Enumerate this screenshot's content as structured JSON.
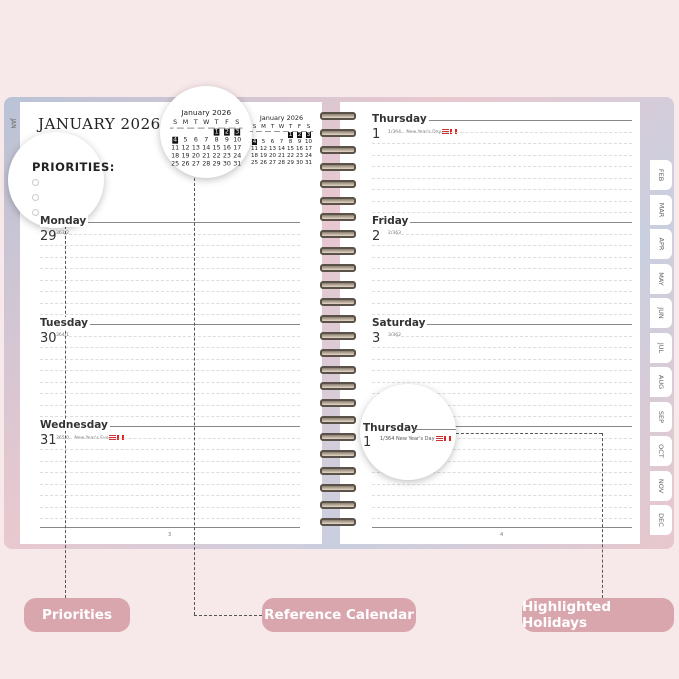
{
  "left_page": {
    "month_title": "JANUARY 2026",
    "priorities_label": "PRIORITIES:",
    "days": [
      {
        "name": "Monday",
        "date": "29",
        "count": "363/2",
        "holiday": ""
      },
      {
        "name": "Tuesday",
        "date": "30",
        "count": "364/1",
        "holiday": ""
      },
      {
        "name": "Wednesday",
        "date": "31",
        "count": "365/0",
        "holiday": "New Year's Eve"
      }
    ],
    "page_number": "3",
    "tab": "JAN"
  },
  "right_page": {
    "days": [
      {
        "name": "Thursday",
        "date": "1",
        "count": "1/364",
        "holiday": "New Year's Day"
      },
      {
        "name": "Friday",
        "date": "2",
        "count": "2/363",
        "holiday": ""
      },
      {
        "name": "Saturday",
        "date": "3",
        "count": "3/362",
        "holiday": ""
      }
    ],
    "page_number": "4",
    "tabs": [
      "FEB",
      "MAR",
      "APR",
      "MAY",
      "JUN",
      "JUL",
      "AUG",
      "SEP",
      "OCT",
      "NOV",
      "DEC"
    ]
  },
  "mini_calendar": {
    "title": "January 2026",
    "weekdays": [
      "S",
      "M",
      "T",
      "W",
      "T",
      "F",
      "S"
    ],
    "weeks": [
      [
        "",
        "",
        "",
        "",
        "1",
        "2",
        "3"
      ],
      [
        "4",
        "5",
        "6",
        "7",
        "8",
        "9",
        "10"
      ],
      [
        "11",
        "12",
        "13",
        "14",
        "15",
        "16",
        "17"
      ],
      [
        "18",
        "19",
        "20",
        "21",
        "22",
        "23",
        "24"
      ],
      [
        "25",
        "26",
        "27",
        "28",
        "29",
        "30",
        "31"
      ]
    ],
    "highlighted": [
      "1",
      "2",
      "3",
      "4"
    ]
  },
  "magnifier_thursday": {
    "name": "Thursday",
    "date": "1",
    "count": "1/364",
    "holiday": "New Year's Day"
  },
  "callouts": {
    "priorities": "Priorities",
    "reference_calendar": "Reference Calendar",
    "highlighted_holidays": "Highlighted Holidays"
  },
  "colors": {
    "background": "#f7e8ea",
    "callout_pill": "#d9a6ae"
  }
}
